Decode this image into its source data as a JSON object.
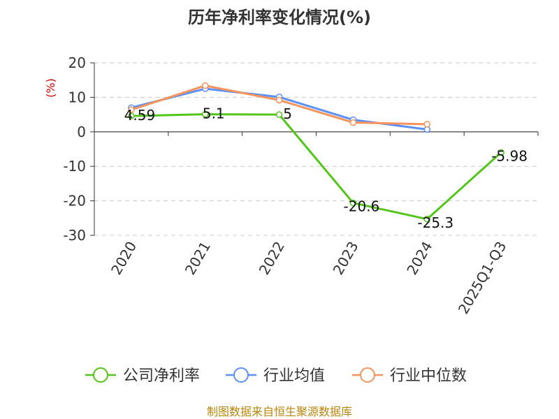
{
  "chart_data": {
    "type": "line",
    "title": "历年净利率变化情况(%)",
    "ylabel": "(%)",
    "categories": [
      "2020",
      "2021",
      "2022",
      "2023",
      "2024",
      "2025Q1-Q3"
    ],
    "ylim": [
      -30,
      20
    ],
    "yticks": [
      20,
      10,
      0,
      -10,
      -20,
      -30
    ],
    "grid": true,
    "legend_position": "bottom",
    "series": [
      {
        "name": "公司净利率",
        "color": "#52c41a",
        "values": [
          4.59,
          5.1,
          5,
          -20.6,
          -25.3,
          -5.98
        ],
        "labels": [
          "4.59",
          "5.1",
          "5",
          "-20.6",
          "-25.3",
          "-5.98"
        ]
      },
      {
        "name": "行业均值",
        "color": "#5b8ff9",
        "values": [
          7.0,
          12.5,
          10.1,
          3.5,
          0.7,
          null
        ]
      },
      {
        "name": "行业中位数",
        "color": "#f6935a",
        "values": [
          6.4,
          13.4,
          9.2,
          2.7,
          2.2,
          null
        ]
      }
    ]
  },
  "source": "制图数据来自恒生聚源数据库"
}
